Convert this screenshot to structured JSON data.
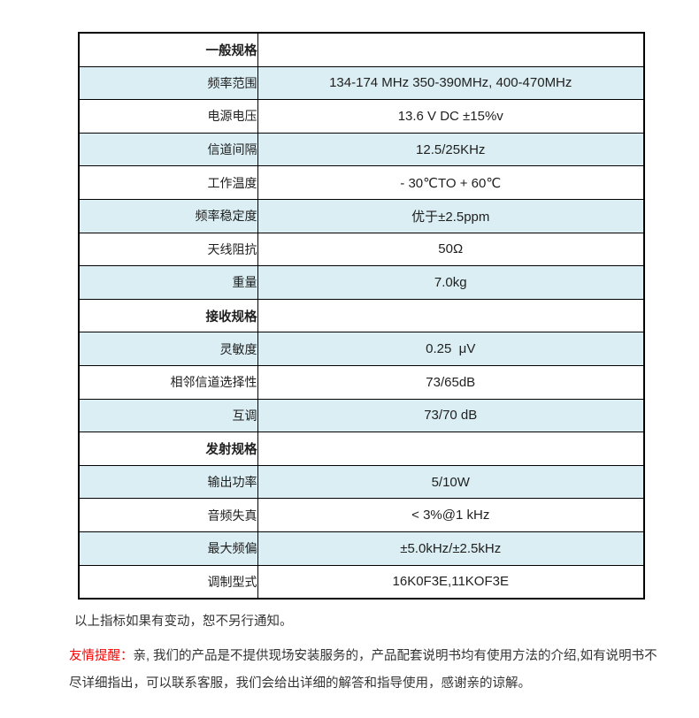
{
  "table": {
    "rows": [
      {
        "label": "一般规格",
        "value": "",
        "type": "section"
      },
      {
        "label": "频率范围",
        "value": "134-174 MHz 350-390MHz, 400-470MHz",
        "type": "spec"
      },
      {
        "label": "电源电压",
        "value": "13.6 V DC ±15%v",
        "type": "spec"
      },
      {
        "label": "信道间隔",
        "value": "12.5/25KHz",
        "type": "spec"
      },
      {
        "label": "工作温度",
        "value": "- 30℃TO + 60℃",
        "type": "spec"
      },
      {
        "label": "频率稳定度",
        "value": "优于±2.5ppm",
        "type": "spec"
      },
      {
        "label": "天线阻抗",
        "value": "50Ω",
        "type": "spec"
      },
      {
        "label": "重量",
        "value": "7.0kg",
        "type": "spec"
      },
      {
        "label": "接收规格",
        "value": "",
        "type": "section"
      },
      {
        "label": "灵敏度",
        "value": "0.25  μV",
        "type": "spec"
      },
      {
        "label": "相邻信道选择性",
        "value": "73/65dB",
        "type": "spec"
      },
      {
        "label": "互调",
        "value": "73/70 dB",
        "type": "spec"
      },
      {
        "label": "发射规格",
        "value": "",
        "type": "section"
      },
      {
        "label": "输出功率",
        "value": "5/10W",
        "type": "spec"
      },
      {
        "label": "音频失真",
        "value": "< 3%@1 kHz",
        "type": "spec"
      },
      {
        "label": "最大频偏",
        "value": "±5.0kHz/±2.5kHz",
        "type": "spec"
      },
      {
        "label": "调制型式",
        "value": "16K0F3E,11KOF3E",
        "type": "spec"
      }
    ]
  },
  "notes": {
    "change_notice": "以上指标如果有变动，恕不另行通知。",
    "reminder_label": "友情提醒：",
    "reminder_line1": "亲, 我们的产品是不提供现场安装服务的，产品配套说明书均有使用方法的介绍,如有说明书不",
    "reminder_line2": "尽详细指出，可以联系客服，我们会给出详细的解答和指导使用，感谢亲的谅解。"
  },
  "colors": {
    "row_alt_background": "#daeef3",
    "table_border": "#000000",
    "reminder_red": "#ff0000",
    "body_text": "#333333"
  }
}
